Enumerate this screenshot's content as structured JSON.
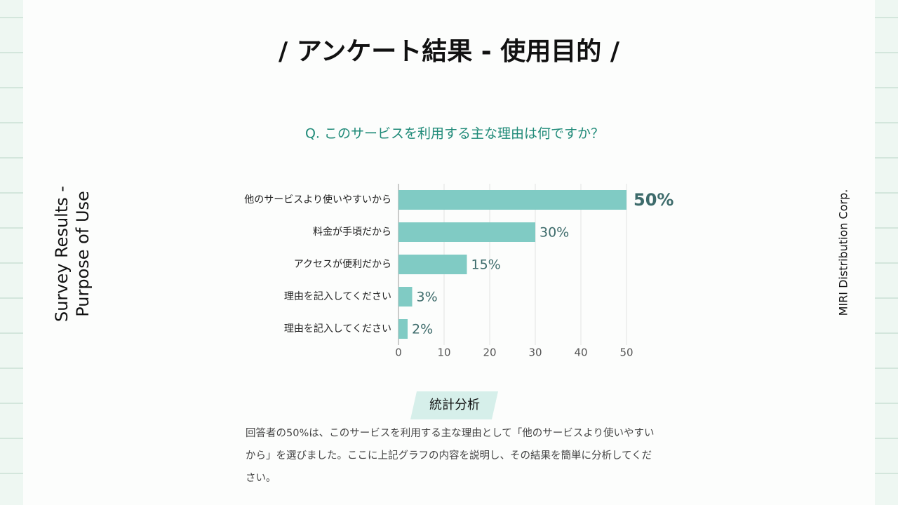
{
  "slide": {
    "title": "/ アンケート結果 - 使用目的 /",
    "side_title": [
      "Survey Results -",
      "Purpose of Use"
    ],
    "company": "MIRI Distribution Corp.",
    "analysis_heading": "統計分析",
    "analysis_text": "回答者の50%は、このサービスを利用する主な理由として「他のサービスより使いやすいから」を選びました。ここに上記グラフの内容を説明し、その結果を簡単に分析してください。"
  },
  "chart_data": {
    "type": "hbar",
    "title": "Q. このサービスを利用する主な理由は何ですか？",
    "categories": [
      "他のサービスより使いやすいから",
      "料金が手頃だから",
      "アクセスが便利だから",
      "理由を記入してください",
      "理由を記入してください"
    ],
    "values": [
      50,
      30,
      15,
      3,
      2
    ],
    "value_labels": [
      "50%",
      "30%",
      "15%",
      "3%",
      "2%"
    ],
    "color": "#80cbc4",
    "xlim": [
      0,
      50
    ],
    "xticks": [
      0,
      10,
      20,
      30,
      40,
      50
    ],
    "grid": true
  }
}
